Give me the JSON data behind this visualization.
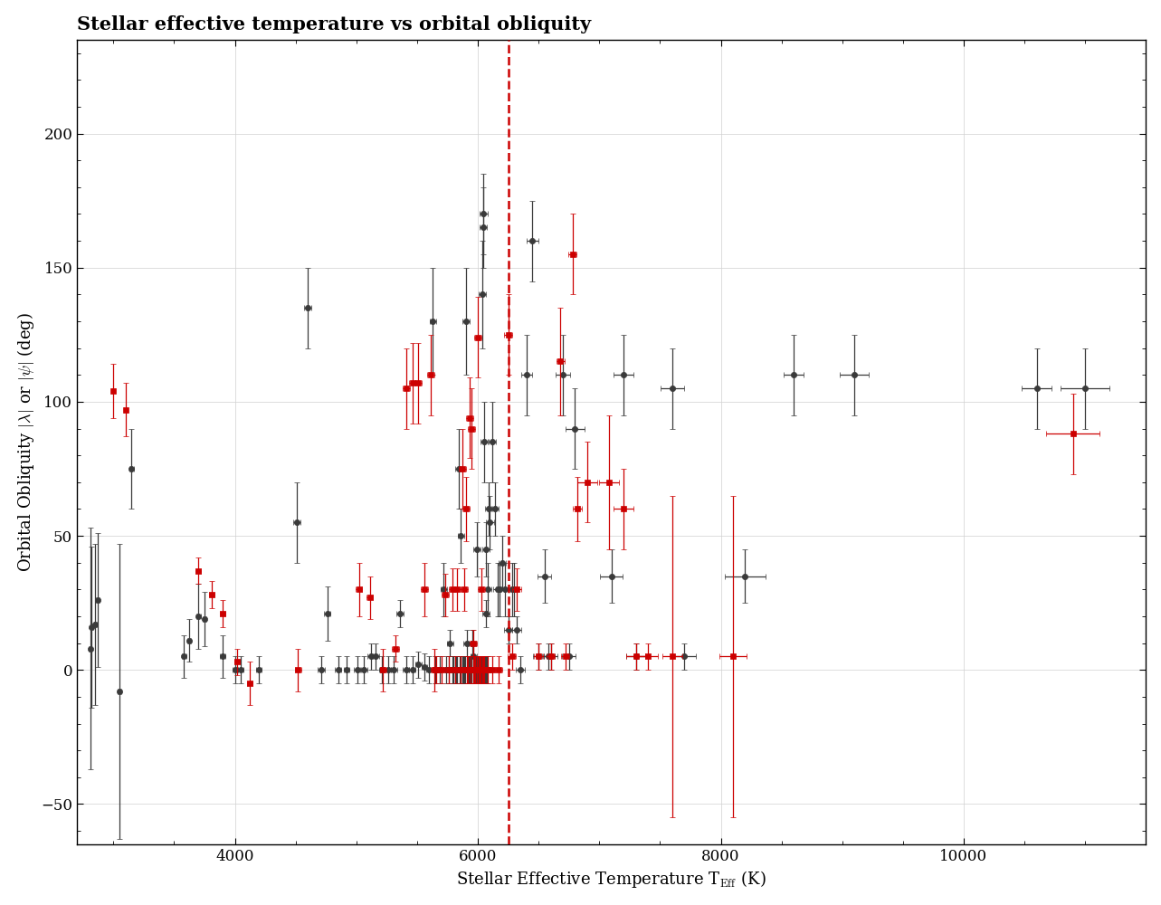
{
  "title": "Stellar effective temperature vs orbital obliquity",
  "kraft_break_x": 6250,
  "xlim": [
    2700,
    11500
  ],
  "ylim": [
    -65,
    235
  ],
  "yticks": [
    -50,
    0,
    50,
    100,
    150,
    200
  ],
  "xticks": [
    4000,
    6000,
    8000,
    10000
  ],
  "black_color": "#3a3a3a",
  "red_color": "#cc0000",
  "kraft_color": "#cc0000",
  "background_color": "#ffffff",
  "grid_color": "#d0d0d0",
  "title_fontsize": 15,
  "label_fontsize": 13,
  "tick_fontsize": 12,
  "marker_size": 4.5,
  "capsize": 2,
  "linewidth": 0.9,
  "black_points": [
    [
      2810,
      8,
      12,
      45
    ],
    [
      2820,
      16,
      12,
      30
    ],
    [
      2850,
      17,
      12,
      30
    ],
    [
      2870,
      26,
      12,
      25
    ],
    [
      3050,
      -8,
      12,
      55
    ],
    [
      3150,
      75,
      15,
      15
    ],
    [
      3580,
      5,
      20,
      8
    ],
    [
      3620,
      11,
      15,
      8
    ],
    [
      3700,
      20,
      20,
      12
    ],
    [
      3750,
      19,
      18,
      10
    ],
    [
      3900,
      5,
      22,
      8
    ],
    [
      4000,
      0,
      22,
      5
    ],
    [
      4050,
      0,
      22,
      5
    ],
    [
      4200,
      0,
      22,
      5
    ],
    [
      4510,
      55,
      30,
      15
    ],
    [
      4600,
      135,
      28,
      15
    ],
    [
      4710,
      0,
      28,
      5
    ],
    [
      4760,
      21,
      25,
      10
    ],
    [
      4850,
      0,
      25,
      5
    ],
    [
      4920,
      0,
      25,
      5
    ],
    [
      5010,
      0,
      28,
      5
    ],
    [
      5060,
      0,
      28,
      5
    ],
    [
      5120,
      5,
      28,
      5
    ],
    [
      5160,
      5,
      25,
      5
    ],
    [
      5210,
      0,
      25,
      5
    ],
    [
      5260,
      0,
      25,
      5
    ],
    [
      5310,
      0,
      25,
      5
    ],
    [
      5360,
      21,
      28,
      5
    ],
    [
      5410,
      0,
      25,
      5
    ],
    [
      5460,
      0,
      25,
      5
    ],
    [
      5510,
      2,
      25,
      5
    ],
    [
      5560,
      1,
      25,
      5
    ],
    [
      5600,
      0,
      25,
      5
    ],
    [
      5630,
      130,
      28,
      20
    ],
    [
      5650,
      0,
      25,
      5
    ],
    [
      5690,
      0,
      28,
      5
    ],
    [
      5720,
      30,
      28,
      10
    ],
    [
      5740,
      0,
      25,
      5
    ],
    [
      5760,
      0,
      25,
      5
    ],
    [
      5770,
      10,
      25,
      5
    ],
    [
      5790,
      0,
      25,
      5
    ],
    [
      5800,
      0,
      25,
      5
    ],
    [
      5810,
      0,
      25,
      5
    ],
    [
      5820,
      0,
      25,
      5
    ],
    [
      5830,
      0,
      25,
      5
    ],
    [
      5840,
      75,
      28,
      15
    ],
    [
      5850,
      0,
      25,
      5
    ],
    [
      5855,
      0,
      25,
      5
    ],
    [
      5860,
      50,
      28,
      10
    ],
    [
      5870,
      0,
      25,
      5
    ],
    [
      5875,
      0,
      25,
      5
    ],
    [
      5880,
      0,
      25,
      5
    ],
    [
      5885,
      0,
      25,
      5
    ],
    [
      5890,
      0,
      25,
      5
    ],
    [
      5895,
      0,
      25,
      5
    ],
    [
      5900,
      130,
      30,
      20
    ],
    [
      5910,
      10,
      28,
      5
    ],
    [
      5915,
      0,
      25,
      5
    ],
    [
      5920,
      0,
      25,
      5
    ],
    [
      5925,
      0,
      25,
      5
    ],
    [
      5930,
      0,
      28,
      5
    ],
    [
      5940,
      0,
      28,
      5
    ],
    [
      5950,
      0,
      28,
      5
    ],
    [
      5955,
      10,
      28,
      5
    ],
    [
      5960,
      0,
      28,
      5
    ],
    [
      5965,
      5,
      28,
      5
    ],
    [
      5970,
      0,
      28,
      5
    ],
    [
      5975,
      0,
      28,
      5
    ],
    [
      5980,
      0,
      28,
      5
    ],
    [
      5985,
      0,
      28,
      5
    ],
    [
      5990,
      45,
      30,
      10
    ],
    [
      5995,
      0,
      28,
      5
    ],
    [
      6000,
      0,
      28,
      5
    ],
    [
      6005,
      0,
      28,
      5
    ],
    [
      6010,
      0,
      28,
      5
    ],
    [
      6015,
      0,
      28,
      5
    ],
    [
      6020,
      0,
      28,
      5
    ],
    [
      6025,
      0,
      28,
      5
    ],
    [
      6030,
      0,
      30,
      5
    ],
    [
      6035,
      0,
      30,
      5
    ],
    [
      6040,
      140,
      30,
      20
    ],
    [
      6045,
      165,
      30,
      15
    ],
    [
      6048,
      170,
      30,
      15
    ],
    [
      6050,
      85,
      30,
      15
    ],
    [
      6055,
      0,
      30,
      5
    ],
    [
      6060,
      0,
      30,
      5
    ],
    [
      6065,
      0,
      30,
      5
    ],
    [
      6068,
      45,
      30,
      10
    ],
    [
      6070,
      21,
      30,
      5
    ],
    [
      6075,
      0,
      30,
      5
    ],
    [
      6080,
      30,
      32,
      10
    ],
    [
      6090,
      60,
      32,
      10
    ],
    [
      6100,
      55,
      32,
      10
    ],
    [
      6120,
      85,
      32,
      15
    ],
    [
      6140,
      60,
      32,
      10
    ],
    [
      6160,
      30,
      32,
      10
    ],
    [
      6180,
      30,
      32,
      10
    ],
    [
      6200,
      40,
      32,
      10
    ],
    [
      6220,
      30,
      32,
      10
    ],
    [
      6250,
      15,
      35,
      5
    ],
    [
      6280,
      30,
      35,
      10
    ],
    [
      6300,
      30,
      35,
      10
    ],
    [
      6320,
      15,
      35,
      5
    ],
    [
      6350,
      0,
      35,
      5
    ],
    [
      6400,
      110,
      45,
      15
    ],
    [
      6450,
      160,
      48,
      15
    ],
    [
      6500,
      5,
      45,
      5
    ],
    [
      6550,
      35,
      55,
      10
    ],
    [
      6580,
      5,
      55,
      5
    ],
    [
      6600,
      5,
      55,
      5
    ],
    [
      6700,
      110,
      60,
      15
    ],
    [
      6750,
      5,
      55,
      5
    ],
    [
      6800,
      90,
      75,
      15
    ],
    [
      7100,
      35,
      95,
      10
    ],
    [
      7200,
      110,
      80,
      15
    ],
    [
      7300,
      5,
      80,
      5
    ],
    [
      7600,
      105,
      95,
      15
    ],
    [
      7700,
      5,
      95,
      5
    ],
    [
      8200,
      35,
      170,
      10
    ],
    [
      8600,
      110,
      80,
      15
    ],
    [
      9100,
      110,
      120,
      15
    ],
    [
      10600,
      105,
      120,
      15
    ],
    [
      11000,
      105,
      200,
      15
    ]
  ],
  "red_points": [
    [
      3000,
      104,
      12,
      10
    ],
    [
      3100,
      97,
      12,
      10
    ],
    [
      3700,
      37,
      22,
      5
    ],
    [
      3810,
      28,
      22,
      5
    ],
    [
      3900,
      21,
      22,
      5
    ],
    [
      4020,
      3,
      22,
      5
    ],
    [
      4120,
      -5,
      22,
      8
    ],
    [
      4520,
      0,
      28,
      8
    ],
    [
      5020,
      30,
      28,
      10
    ],
    [
      5110,
      27,
      28,
      8
    ],
    [
      5220,
      0,
      28,
      8
    ],
    [
      5320,
      8,
      28,
      5
    ],
    [
      5410,
      105,
      28,
      15
    ],
    [
      5460,
      107,
      28,
      15
    ],
    [
      5510,
      107,
      28,
      15
    ],
    [
      5560,
      30,
      30,
      10
    ],
    [
      5610,
      110,
      30,
      15
    ],
    [
      5640,
      0,
      30,
      8
    ],
    [
      5660,
      0,
      30,
      5
    ],
    [
      5700,
      0,
      30,
      5
    ],
    [
      5730,
      28,
      30,
      8
    ],
    [
      5760,
      0,
      30,
      5
    ],
    [
      5790,
      30,
      30,
      8
    ],
    [
      5810,
      0,
      30,
      5
    ],
    [
      5830,
      30,
      30,
      8
    ],
    [
      5860,
      0,
      30,
      5
    ],
    [
      5875,
      75,
      30,
      15
    ],
    [
      5890,
      30,
      30,
      8
    ],
    [
      5900,
      60,
      30,
      12
    ],
    [
      5910,
      0,
      30,
      5
    ],
    [
      5920,
      0,
      30,
      5
    ],
    [
      5930,
      94,
      30,
      15
    ],
    [
      5940,
      0,
      30,
      5
    ],
    [
      5950,
      90,
      30,
      15
    ],
    [
      5960,
      10,
      30,
      5
    ],
    [
      5965,
      0,
      30,
      5
    ],
    [
      5970,
      0,
      30,
      5
    ],
    [
      5975,
      0,
      30,
      5
    ],
    [
      5980,
      0,
      30,
      5
    ],
    [
      5990,
      0,
      30,
      5
    ],
    [
      6000,
      124,
      30,
      15
    ],
    [
      6005,
      0,
      30,
      5
    ],
    [
      6010,
      0,
      30,
      5
    ],
    [
      6015,
      0,
      30,
      5
    ],
    [
      6020,
      0,
      30,
      5
    ],
    [
      6030,
      30,
      30,
      8
    ],
    [
      6035,
      0,
      30,
      5
    ],
    [
      6040,
      0,
      30,
      5
    ],
    [
      6045,
      0,
      30,
      5
    ],
    [
      6055,
      0,
      30,
      5
    ],
    [
      6080,
      0,
      30,
      5
    ],
    [
      6120,
      0,
      30,
      5
    ],
    [
      6170,
      0,
      32,
      5
    ],
    [
      6250,
      125,
      32,
      15
    ],
    [
      6280,
      5,
      35,
      5
    ],
    [
      6320,
      30,
      35,
      8
    ],
    [
      6500,
      5,
      35,
      5
    ],
    [
      6600,
      5,
      35,
      5
    ],
    [
      6680,
      115,
      35,
      20
    ],
    [
      6720,
      5,
      35,
      5
    ],
    [
      6780,
      155,
      35,
      15
    ],
    [
      6820,
      60,
      35,
      12
    ],
    [
      6900,
      70,
      80,
      15
    ],
    [
      7080,
      70,
      80,
      25
    ],
    [
      7200,
      60,
      80,
      15
    ],
    [
      7300,
      5,
      80,
      5
    ],
    [
      7400,
      5,
      80,
      5
    ],
    [
      7600,
      5,
      80,
      60
    ],
    [
      8100,
      5,
      110,
      60
    ],
    [
      10900,
      88,
      220,
      15
    ]
  ]
}
